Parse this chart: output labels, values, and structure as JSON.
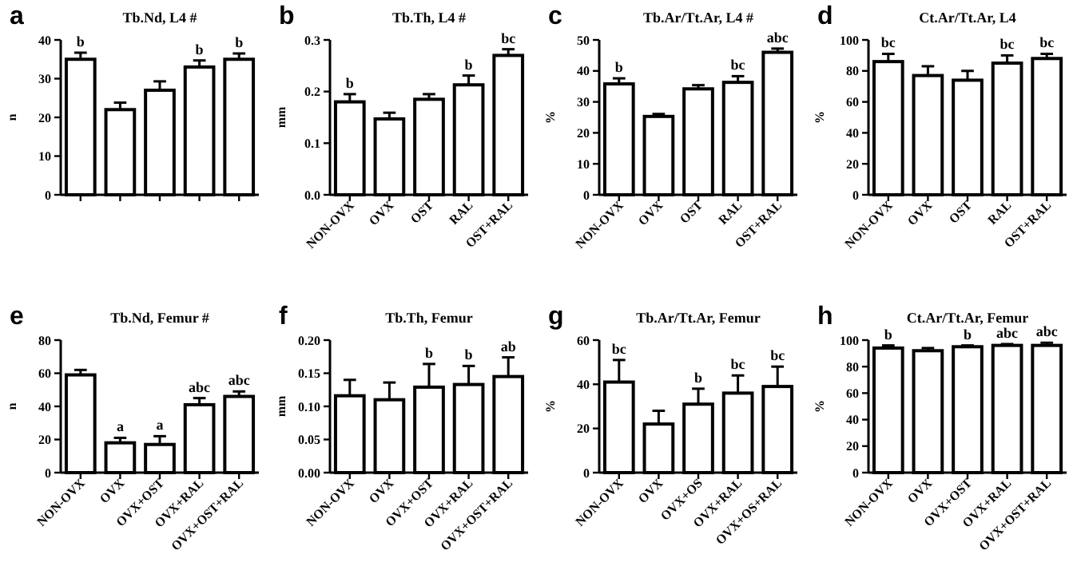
{
  "chart_data": [
    {
      "type": "bar",
      "title": "Tb.Nd, L4 #",
      "ylabel": "n",
      "categories": [
        null,
        null,
        null,
        null,
        null
      ],
      "values": [
        35,
        22,
        27,
        33,
        35
      ],
      "color": "#ffffff",
      "errors": [
        [
          35,
          36.7
        ],
        [
          22,
          23.8
        ],
        [
          27,
          29.3
        ],
        [
          33,
          34.7
        ],
        [
          35,
          36.5
        ]
      ],
      "ylim": [
        0,
        40
      ],
      "yticks": [
        0,
        10,
        20,
        30,
        40
      ],
      "grid": false,
      "annotations": [
        "a",
        {
          "text": "b",
          "y": 36.7
        },
        {
          "text": "b",
          "y": 34.7
        },
        {
          "text": "b",
          "y": 36.5
        }
      ]
    },
    {
      "type": "bar",
      "title": "Tb.Th, L4 #",
      "ylabel": "mm",
      "categories": [
        "NON-OVX",
        "OVX",
        "OST",
        "RAL",
        "OST+RAL"
      ],
      "values": [
        0.18,
        0.147,
        0.185,
        0.213,
        0.27
      ],
      "color": "#ffffff",
      "errors": [
        [
          0.18,
          0.195
        ],
        [
          0.147,
          0.159
        ],
        [
          0.185,
          0.195
        ],
        [
          0.213,
          0.231
        ],
        [
          0.27,
          0.282
        ]
      ],
      "ylim": [
        0,
        0.3
      ],
      "yticks": [
        {
          "value": 0,
          "label": "0.0"
        },
        {
          "value": 0.1,
          "label": "0.1"
        },
        {
          "value": 0.2,
          "label": "0.2"
        },
        {
          "value": 0.3,
          "label": "0.3"
        }
      ],
      "grid": false,
      "annotations": [
        "b",
        {
          "text": "b",
          "x": "NON-OVX",
          "y": 0.195
        },
        {
          "text": "b",
          "x": "RAL",
          "y": 0.231
        },
        {
          "text": "bc",
          "x": "OST+RAL",
          "y": 0.282
        }
      ]
    },
    {
      "type": "bar",
      "title": "Tb.Ar/Tt.Ar, L4 #",
      "ylabel": "%",
      "categories": [
        "NON-OVX",
        "OVX",
        "OST",
        "RAL",
        "OST+RAL"
      ],
      "values": [
        35.8,
        25.3,
        34.2,
        36.3,
        46
      ],
      "color": "#ffffff",
      "errors": [
        [
          35.8,
          37.6
        ],
        [
          25.3,
          26.1
        ],
        [
          34.2,
          35.4
        ],
        [
          36.3,
          38.3
        ],
        [
          46,
          47.2
        ]
      ],
      "ylim": [
        0,
        50
      ],
      "yticks": [
        0,
        10,
        20,
        30,
        40,
        50
      ],
      "grid": false,
      "annotations": [
        "c",
        {
          "text": "b",
          "x": "NON-OVX",
          "y": 37.6
        },
        {
          "text": "bc",
          "x": "RAL",
          "y": 38.3
        },
        {
          "text": "abc",
          "x": "OST+RAL",
          "y": 47.2
        }
      ]
    },
    {
      "type": "bar",
      "title": "Ct.Ar/Tt.Ar, L4",
      "ylabel": "%",
      "categories": [
        "NON-OVX",
        "OVX",
        "OST",
        "RAL",
        "OST+RAL"
      ],
      "values": [
        86,
        77,
        74,
        85,
        88
      ],
      "color": "#ffffff",
      "errors": [
        [
          86,
          91
        ],
        [
          77,
          83
        ],
        [
          74,
          80
        ],
        [
          85,
          90
        ],
        [
          88,
          91
        ]
      ],
      "ylim": [
        0,
        100
      ],
      "yticks": [
        0,
        20,
        40,
        60,
        80,
        100
      ],
      "grid": false,
      "annotations": [
        "d",
        {
          "text": "bc",
          "x": "NON-OVX",
          "y": 91
        },
        {
          "text": "bc",
          "x": "RAL",
          "y": 90
        },
        {
          "text": "bc",
          "x": "OST+RAL",
          "y": 91
        }
      ]
    },
    {
      "type": "bar",
      "title": "Tb.Nd,  Femur #",
      "ylabel": "n",
      "categories": [
        "NON-OVX",
        "OVX",
        "OVX+OST",
        "OVX+RAL",
        "OVX+OST+RAL"
      ],
      "values": [
        59,
        18,
        17,
        41,
        46
      ],
      "color": "#ffffff",
      "errors": [
        [
          59,
          62
        ],
        [
          18,
          21
        ],
        [
          17,
          22
        ],
        [
          41,
          45
        ],
        [
          46,
          49
        ]
      ],
      "ylim": [
        0,
        80
      ],
      "yticks": [
        0,
        20,
        40,
        60,
        80
      ],
      "grid": false,
      "annotations": [
        "e",
        {
          "text": "a",
          "x": "OVX",
          "y": 21
        },
        {
          "text": "a",
          "x": "OVX+OST",
          "y": 22
        },
        {
          "text": "abc",
          "x": "OVX+RAL",
          "y": 45
        },
        {
          "text": "abc",
          "x": "OVX+OST+RAL",
          "y": 49
        }
      ]
    },
    {
      "type": "bar",
      "title": "Tb.Th, Femur",
      "ylabel": "mm",
      "categories": [
        "NON-OVX",
        "OVX",
        "OVX+OST",
        "OVX+RAL",
        "OVX+OST+RAL"
      ],
      "values": [
        0.116,
        0.11,
        0.129,
        0.133,
        0.145
      ],
      "color": "#ffffff",
      "errors": [
        [
          0.116,
          0.14
        ],
        [
          0.11,
          0.136
        ],
        [
          0.129,
          0.164
        ],
        [
          0.133,
          0.161
        ],
        [
          0.145,
          0.174
        ]
      ],
      "ylim": [
        0,
        0.2
      ],
      "yticks": [
        {
          "value": 0,
          "label": "0.00"
        },
        {
          "value": 0.05,
          "label": "0.05"
        },
        {
          "value": 0.1,
          "label": "0.10"
        },
        {
          "value": 0.15,
          "label": "0.15"
        },
        {
          "value": 0.2,
          "label": "0.20"
        }
      ],
      "grid": false,
      "annotations": [
        "f",
        {
          "text": "b",
          "x": "OVX+OST",
          "y": 0.164
        },
        {
          "text": "b",
          "x": "OVX+RAL",
          "y": 0.161
        },
        {
          "text": "ab",
          "x": "OVX+OST+RAL",
          "y": 0.174
        }
      ]
    },
    {
      "type": "bar",
      "title": "Tb.Ar/Tt.Ar, Femur",
      "ylabel": "%",
      "categories": [
        "NON-OVX",
        "OVX",
        "OVX+OS",
        "OVX+RAL",
        "OVX+OS+RAL"
      ],
      "values": [
        41,
        22,
        31,
        36,
        39
      ],
      "color": "#ffffff",
      "errors": [
        [
          41,
          51
        ],
        [
          22,
          28
        ],
        [
          31,
          38
        ],
        [
          36,
          44
        ],
        [
          39,
          48
        ]
      ],
      "ylim": [
        0,
        60
      ],
      "yticks": [
        0,
        20,
        40,
        60
      ],
      "grid": false,
      "annotations": [
        "g",
        {
          "text": "bc",
          "x": "NON-OVX",
          "y": 51
        },
        {
          "text": "b",
          "x": "OVX+OS",
          "y": 38
        },
        {
          "text": "bc",
          "x": "OVX+RAL",
          "y": 44
        },
        {
          "text": "bc",
          "x": "OVX+OS+RAL",
          "y": 48
        }
      ]
    },
    {
      "type": "bar",
      "title": "Ct.Ar/Tt.Ar, Femur",
      "ylabel": "%",
      "categories": [
        "NON-OVX",
        "OVX",
        "OVX+OST",
        "OVX+RAL",
        "OVX+OST+RAL"
      ],
      "values": [
        94,
        92,
        95,
        96,
        96
      ],
      "color": "#ffffff",
      "errors": [
        [
          94,
          96
        ],
        [
          92,
          94
        ],
        [
          95,
          96
        ],
        [
          96,
          97
        ],
        [
          96,
          98
        ]
      ],
      "ylim": [
        0,
        100
      ],
      "yticks": [
        0,
        20,
        40,
        60,
        80,
        100
      ],
      "grid": false,
      "annotations": [
        "h",
        {
          "text": "b",
          "x": "NON-OVX",
          "y": 96
        },
        {
          "text": "b",
          "x": "OVX+OST",
          "y": 96
        },
        {
          "text": "abc",
          "x": "OVX+RAL",
          "y": 97
        },
        {
          "text": "abc",
          "x": "OVX+OST+RAL",
          "y": 98
        }
      ]
    }
  ]
}
